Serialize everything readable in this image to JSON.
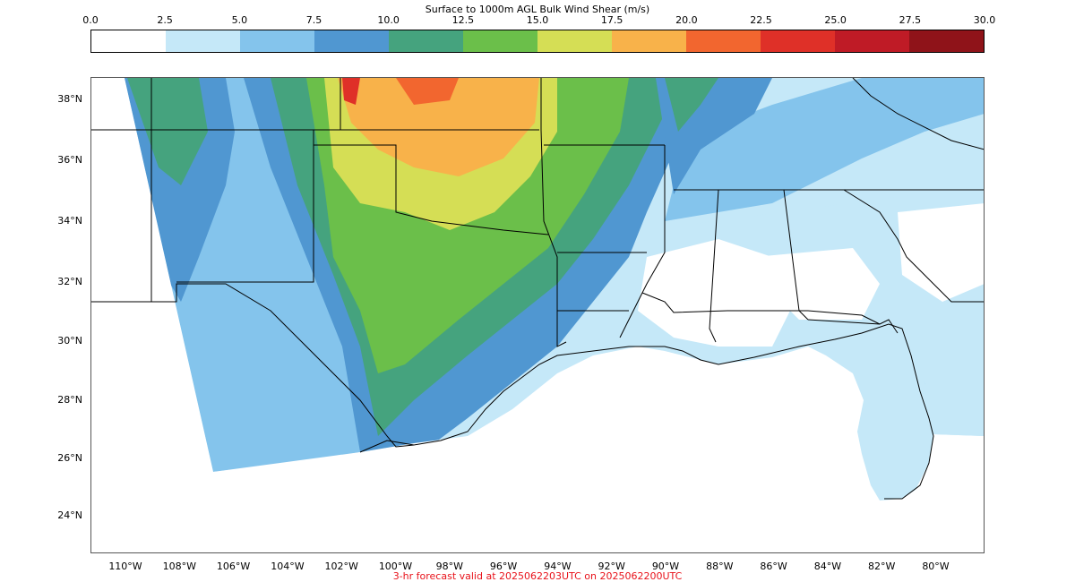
{
  "colorbar": {
    "title": "Surface to 1000m AGL Bulk Wind Shear (m/s)",
    "ticks": [
      "0.0",
      "2.5",
      "5.0",
      "7.5",
      "10.0",
      "12.5",
      "15.0",
      "17.5",
      "20.0",
      "22.5",
      "25.0",
      "27.5",
      "30.0"
    ],
    "colors": [
      "#ffffff",
      "#c5e8f8",
      "#84c4ec",
      "#5097d1",
      "#45a37e",
      "#6bbf4a",
      "#d5de55",
      "#f8b24a",
      "#f2662f",
      "#df3028",
      "#bf1b26",
      "#8f1319"
    ]
  },
  "map": {
    "lat_labels": [
      "38°N",
      "36°N",
      "34°N",
      "32°N",
      "30°N",
      "28°N",
      "26°N",
      "24°N"
    ],
    "lon_labels": [
      "110°W",
      "108°W",
      "106°W",
      "104°W",
      "102°W",
      "100°W",
      "98°W",
      "96°W",
      "94°W",
      "92°W",
      "90°W",
      "88°W",
      "86°W",
      "84°W",
      "82°W",
      "80°W"
    ]
  },
  "footer": {
    "text": "3-hr forecast valid at 2025062203UTC on 2025062200UTC",
    "color": "#e8121a"
  }
}
